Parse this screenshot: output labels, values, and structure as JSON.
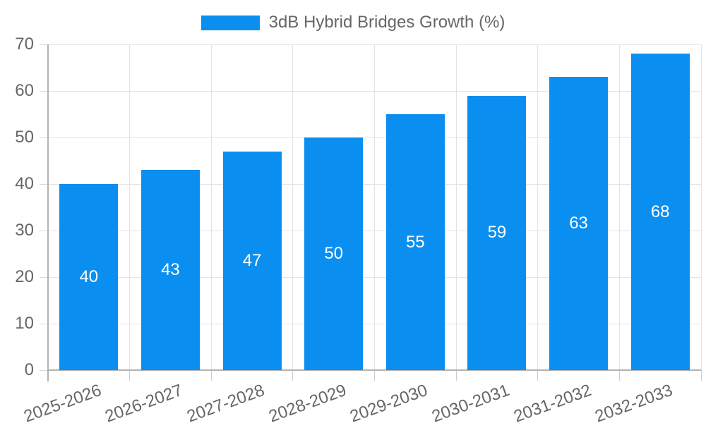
{
  "legend": {
    "label": "3dB Hybrid Bridges Growth (%)"
  },
  "chart_data": {
    "type": "bar",
    "title": "3dB Hybrid Bridges Growth (%)",
    "categories": [
      "2025-2026",
      "2026-2027",
      "2027-2028",
      "2028-2029",
      "2029-2030",
      "2030-2031",
      "2031-2032",
      "2032-2033"
    ],
    "values": [
      40,
      43,
      47,
      50,
      55,
      59,
      63,
      68
    ],
    "xlabel": "",
    "ylabel": "",
    "ylim": [
      0,
      70
    ],
    "y_ticks": [
      0,
      10,
      20,
      30,
      40,
      50,
      60,
      70
    ],
    "grid": true,
    "legend_position": "top",
    "bar_color": "#0a8ff0",
    "value_label_color": "#ffffff",
    "axis_text_color": "#666666",
    "gridline_color": "#e3e3e3",
    "axis_line_color": "#b3b3b3"
  }
}
